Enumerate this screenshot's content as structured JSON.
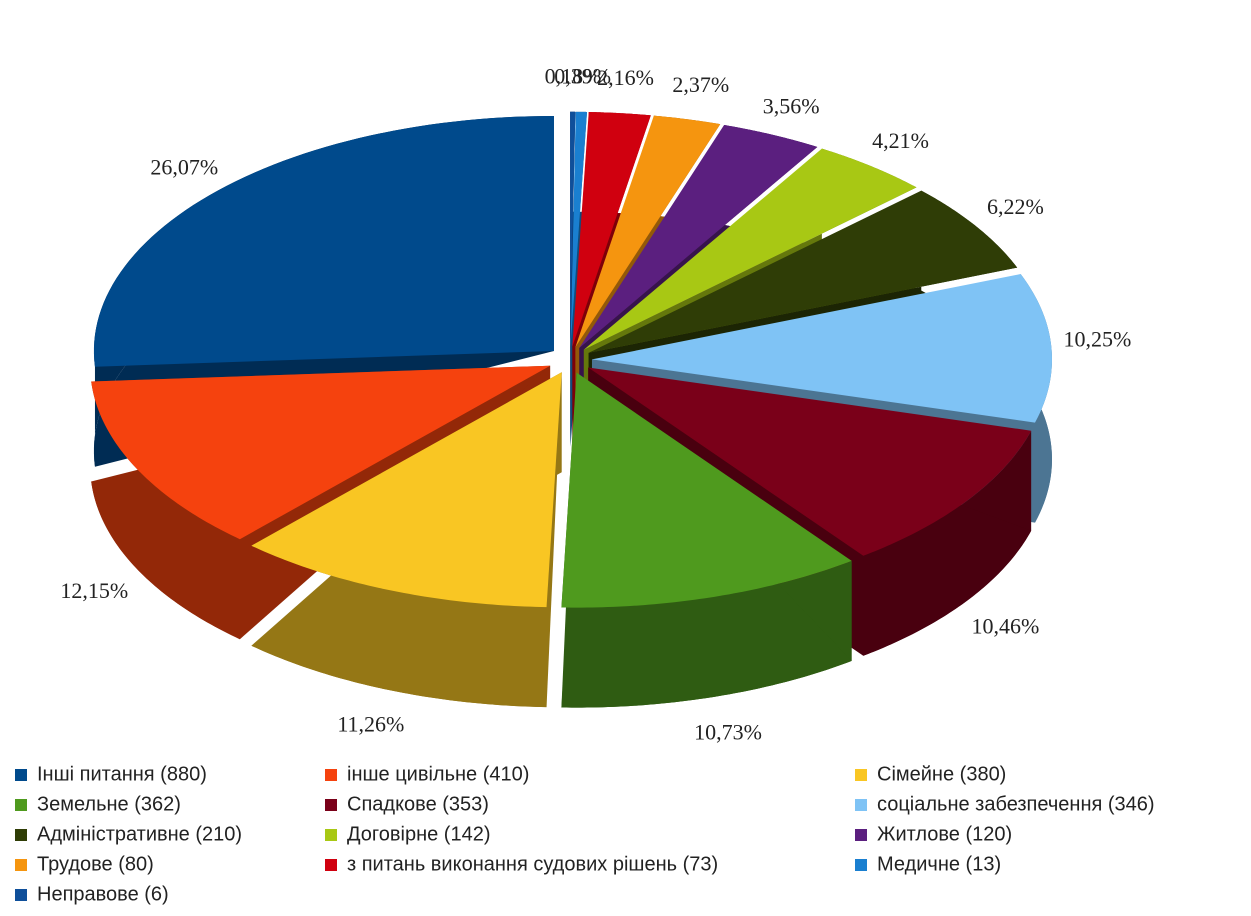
{
  "chart_data": {
    "type": "pie",
    "categories": [
      "Інші питання (880)",
      "інше цивільне (410)",
      "Сімейне (380)",
      "Земельне (362)",
      "Спадкове (353)",
      "соціальне забезпечення (346)",
      "Адміністративне (210)",
      "Договірне (142)",
      "Житлове (120)",
      "Трудове (80)",
      "з питань виконання судових рішень (73)",
      "Медичне  (13)",
      "Неправове (6)"
    ],
    "values": [
      26.07,
      12.15,
      11.26,
      10.73,
      10.46,
      10.25,
      6.22,
      4.21,
      3.56,
      2.37,
      2.16,
      0.39,
      0.18
    ],
    "value_labels": [
      "26,07%",
      "12,15%",
      "11,26%",
      "10,73%",
      "10,46%",
      "10,25%",
      "6,22%",
      "4,21%",
      "3,56%",
      "2,37%",
      "2,16%",
      "0,39%",
      "0,18%"
    ],
    "colors": [
      "#004a8c",
      "#f5420e",
      "#f9c623",
      "#4f9a1e",
      "#7a0019",
      "#7fc3f5",
      "#2f3d06",
      "#a8c814",
      "#5b1f7f",
      "#f5950f",
      "#d0000f",
      "#1a7fd0",
      "#0f4f9a"
    ],
    "legend": "bottom"
  }
}
